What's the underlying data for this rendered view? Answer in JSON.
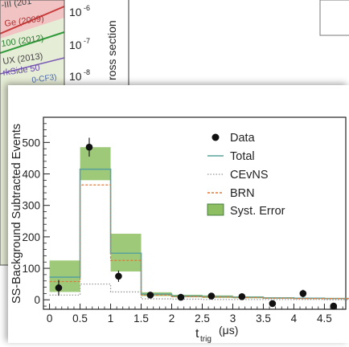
{
  "background_plot": {
    "left_labels": [
      "-III (201",
      "Ge (2009)",
      "100 (2012)",
      "UX (2013)",
      "rkSide 50",
      "0-CF3)"
    ],
    "y_ticks": [
      "10",
      "10",
      "10"
    ],
    "y_tick_exponents": [
      "-6",
      "-7",
      "-8"
    ],
    "ylabel": "ross section"
  },
  "chart_data": {
    "type": "bar",
    "ylabel": "SS-Background Subtracted Events",
    "xlabel_main": "t",
    "xlabel_sub": "trig",
    "xlabel_unit": "(μs)",
    "xlim": [
      -0.1,
      4.85
    ],
    "ylim": [
      -30,
      580
    ],
    "x_ticks": [
      0,
      0.5,
      1,
      1.5,
      2,
      2.5,
      3,
      3.5,
      4,
      4.5
    ],
    "x_tick_labels": [
      "0",
      "0.5",
      "1",
      "1.5",
      "2",
      "2.5",
      "3",
      "3.5",
      "4",
      "4.5"
    ],
    "y_ticks": [
      0,
      100,
      200,
      300,
      400,
      500
    ],
    "y_tick_labels": [
      "0",
      "100",
      "200",
      "300",
      "400",
      "500"
    ],
    "bin_edges": [
      0,
      0.5,
      1,
      1.5,
      2,
      2.5,
      3,
      3.5,
      4,
      4.5,
      4.9
    ],
    "series": [
      {
        "name": "Total",
        "style": "step",
        "color": "#5aa39c",
        "values": [
          72,
          415,
          148,
          18,
          12,
          10,
          8,
          6,
          5,
          4
        ]
      },
      {
        "name": "CEvNS",
        "style": "step-dotted",
        "color": "#999999",
        "values": [
          15,
          50,
          25,
          3,
          2,
          1,
          1,
          1,
          1,
          0
        ]
      },
      {
        "name": "BRN",
        "style": "step-dashed",
        "color": "#e0783a",
        "values": [
          58,
          365,
          125,
          15,
          10,
          9,
          7,
          5,
          4,
          4
        ]
      },
      {
        "name": "Syst. Error",
        "style": "band",
        "color": "#8dbf62",
        "low": [
          25,
          380,
          90,
          12,
          8,
          6,
          5,
          4,
          3,
          2
        ],
        "high": [
          125,
          485,
          210,
          24,
          16,
          14,
          11,
          8,
          7,
          6
        ]
      }
    ],
    "points": {
      "name": "Data",
      "x": [
        0.15,
        0.65,
        1.13,
        1.65,
        2.15,
        2.65,
        3.15,
        3.65,
        4.15,
        4.65
      ],
      "y": [
        38,
        485,
        75,
        15,
        8,
        12,
        10,
        -12,
        20,
        -20
      ],
      "err": [
        25,
        30,
        18,
        10,
        9,
        9,
        9,
        9,
        12,
        9
      ]
    },
    "legend_position": "top-right",
    "grid": false
  }
}
